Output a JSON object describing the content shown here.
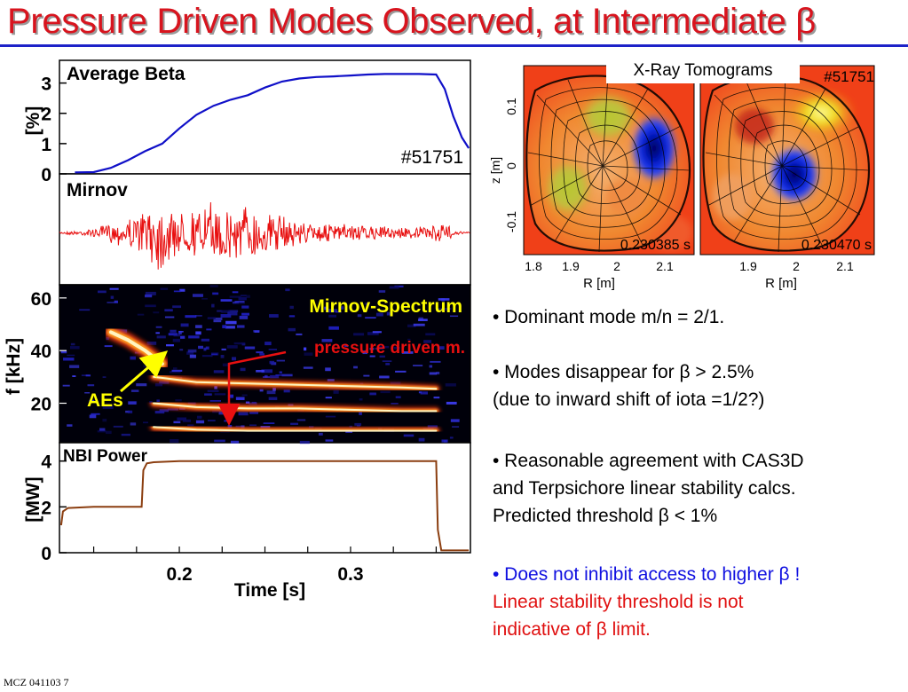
{
  "slide": {
    "title": "Pressure Driven Modes Observed, at Intermediate β",
    "footer": "MCZ 041103  7"
  },
  "bullets": [
    {
      "text": "• Dominant mode m/n = 2/1.",
      "color": "#000000"
    },
    {
      "text": "• Modes disappear for β > 2.5%",
      "color": "#000000"
    },
    {
      "text": "(due to inward shift of iota =1/2?)",
      "color": "#000000"
    },
    {
      "text": "• Reasonable agreement with CAS3D",
      "color": "#000000"
    },
    {
      "text": "and Terpsichore linear stability calcs.",
      "color": "#000000"
    },
    {
      "text": "Predicted threshold β < 1%",
      "color": "#000000"
    },
    {
      "text": "• Does not inhibit access to higher β !",
      "color": "#1010e0"
    },
    {
      "text": "Linear stability threshold is not",
      "color": "#e01010"
    },
    {
      "text": "indicative of β limit.",
      "color": "#e01010"
    }
  ],
  "chart_data": [
    {
      "type": "line",
      "panel": "average-beta",
      "title": "Average Beta",
      "ylabel": "[%]",
      "shot": "#51751",
      "yticks": [
        0,
        1,
        2,
        3
      ],
      "ylim": [
        0,
        3.75
      ],
      "xlim": [
        0.13,
        0.37
      ],
      "x": [
        0.139,
        0.15,
        0.16,
        0.17,
        0.18,
        0.19,
        0.2,
        0.21,
        0.22,
        0.23,
        0.24,
        0.25,
        0.26,
        0.27,
        0.28,
        0.29,
        0.3,
        0.31,
        0.32,
        0.33,
        0.34,
        0.35,
        0.355,
        0.36,
        0.365,
        0.369
      ],
      "y": [
        0.05,
        0.06,
        0.2,
        0.45,
        0.75,
        1.0,
        1.5,
        1.95,
        2.25,
        2.45,
        2.6,
        2.85,
        3.05,
        3.15,
        3.2,
        3.22,
        3.25,
        3.28,
        3.3,
        3.3,
        3.3,
        3.28,
        2.8,
        1.9,
        1.2,
        0.85
      ],
      "color": "#1010c8"
    },
    {
      "type": "line",
      "panel": "mirnov",
      "title": "Mirnov",
      "xlim": [
        0.13,
        0.37
      ],
      "ylim": [
        -1,
        1
      ],
      "x": [
        0.13,
        0.15,
        0.16,
        0.17,
        0.18,
        0.19,
        0.2,
        0.21,
        0.22,
        0.23,
        0.24,
        0.25,
        0.26,
        0.27,
        0.28,
        0.29,
        0.3,
        0.31,
        0.32,
        0.33,
        0.34,
        0.35,
        0.355,
        0.36,
        0.37
      ],
      "envelope": [
        0.02,
        0.1,
        0.22,
        0.35,
        0.65,
        0.95,
        0.55,
        0.6,
        0.75,
        0.8,
        0.75,
        0.6,
        0.4,
        0.3,
        0.25,
        0.22,
        0.2,
        0.18,
        0.16,
        0.15,
        0.15,
        0.2,
        0.3,
        0.05,
        0.02
      ],
      "color": "#e81010"
    },
    {
      "type": "heatmap",
      "panel": "mirnov-spectrum",
      "title": "Mirnov-Spectrum",
      "ylabel": "f [kHz]",
      "yticks": [
        20,
        40,
        60
      ],
      "ylim": [
        5,
        65
      ],
      "xlim": [
        0.13,
        0.37
      ],
      "annotations": [
        {
          "text": "AEs",
          "color": "#ffff00"
        },
        {
          "text": "pressure driven m.",
          "color": "#e81010"
        }
      ],
      "ridges": [
        {
          "x": [
            0.16,
            0.17,
            0.18,
            0.19
          ],
          "y": [
            47,
            44,
            40,
            35
          ],
          "intensity": 1.0
        },
        {
          "x": [
            0.185,
            0.21,
            0.24,
            0.27,
            0.3,
            0.33,
            0.35
          ],
          "y": [
            30,
            28,
            27.5,
            27,
            26.5,
            26,
            25.5
          ],
          "intensity": 0.85
        },
        {
          "x": [
            0.185,
            0.21,
            0.24,
            0.27,
            0.3,
            0.33,
            0.35
          ],
          "y": [
            20,
            18.5,
            18,
            18,
            17.5,
            17,
            17
          ],
          "intensity": 0.9
        },
        {
          "x": [
            0.185,
            0.21,
            0.24,
            0.27,
            0.3,
            0.33,
            0.35
          ],
          "y": [
            11,
            10,
            9.5,
            9.5,
            9.5,
            9.5,
            9.5
          ],
          "intensity": 0.95
        }
      ]
    },
    {
      "type": "line",
      "panel": "nbi-power",
      "title": "NBI Power",
      "ylabel": "[MW]",
      "xlabel": "Time [s]",
      "yticks": [
        0,
        2,
        4
      ],
      "xticks": [
        0.2,
        0.3
      ],
      "ylim": [
        0,
        4.8
      ],
      "xlim": [
        0.13,
        0.37
      ],
      "x": [
        0.131,
        0.132,
        0.135,
        0.15,
        0.17,
        0.178,
        0.179,
        0.181,
        0.185,
        0.2,
        0.25,
        0.3,
        0.34,
        0.35,
        0.351,
        0.353,
        0.36,
        0.369
      ],
      "y": [
        1.2,
        1.8,
        1.95,
        2.0,
        2.0,
        2.0,
        3.6,
        3.9,
        3.95,
        4.0,
        4.0,
        4.0,
        4.0,
        4.0,
        1.0,
        0.1,
        0.1,
        0.1
      ],
      "color": "#8b3e10"
    },
    {
      "type": "heatmap",
      "panel": "xray-tomograms",
      "title": "X-Ray Tomograms",
      "shot": "#51751",
      "xlabel": "R [m]",
      "ylabel": "z [m]",
      "xticks": [
        1.8,
        1.9,
        2.0,
        2.1
      ],
      "xticks2": [
        1.9,
        2.0,
        2.1
      ],
      "yticks": [
        -0.1,
        0,
        0.1
      ],
      "frames": [
        {
          "time": "0.230385 s"
        },
        {
          "time": "0.230470 s"
        }
      ]
    }
  ]
}
